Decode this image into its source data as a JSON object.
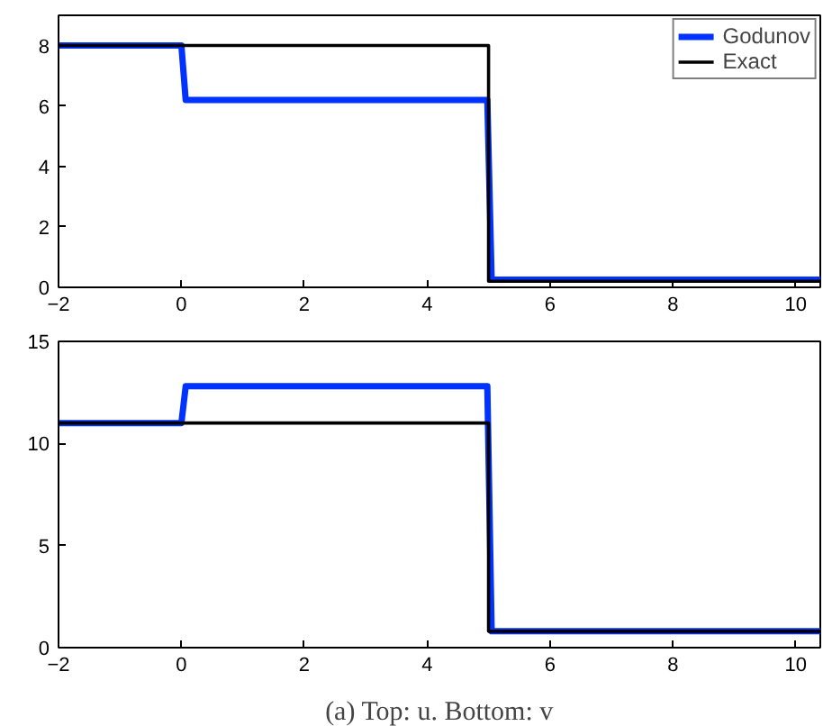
{
  "chart_data": [
    {
      "type": "line",
      "xlim": [
        -2,
        10.4
      ],
      "ylim": [
        0,
        9
      ],
      "xticks": [
        -2,
        0,
        2,
        4,
        6,
        8,
        10
      ],
      "yticks": [
        0,
        2,
        4,
        6,
        8
      ],
      "grid": false,
      "legend": "top right",
      "line_style": "solid",
      "series": [
        {
          "name": "Godunov",
          "color": "#0033ff",
          "x": [
            -2,
            0,
            0.07,
            4.98,
            5.05,
            10.4
          ],
          "values": [
            8,
            8,
            6.2,
            6.2,
            0.25,
            0.25
          ]
        },
        {
          "name": "Exact",
          "color": "#000000",
          "x": [
            -2,
            5,
            5,
            10.4
          ],
          "values": [
            8,
            8,
            0.2,
            0.2
          ]
        }
      ]
    },
    {
      "type": "line",
      "xlim": [
        -2,
        10.4
      ],
      "ylim": [
        0,
        15
      ],
      "xticks": [
        -2,
        0,
        2,
        4,
        6,
        8,
        10
      ],
      "yticks": [
        0,
        5,
        10,
        15
      ],
      "grid": false,
      "legend": false,
      "line_style": "solid",
      "annotations": [
        "(a) Top: u. Bottom: v"
      ],
      "series": [
        {
          "color": "#0033ff",
          "x": [
            -2,
            0,
            0.07,
            4.98,
            5.05,
            10.4
          ],
          "values": [
            11,
            11,
            12.8,
            12.8,
            0.8,
            0.8
          ]
        },
        {
          "color": "#000000",
          "x": [
            -2,
            5,
            5,
            10.4
          ],
          "values": [
            11,
            11,
            0.8,
            0.8
          ]
        }
      ]
    }
  ]
}
